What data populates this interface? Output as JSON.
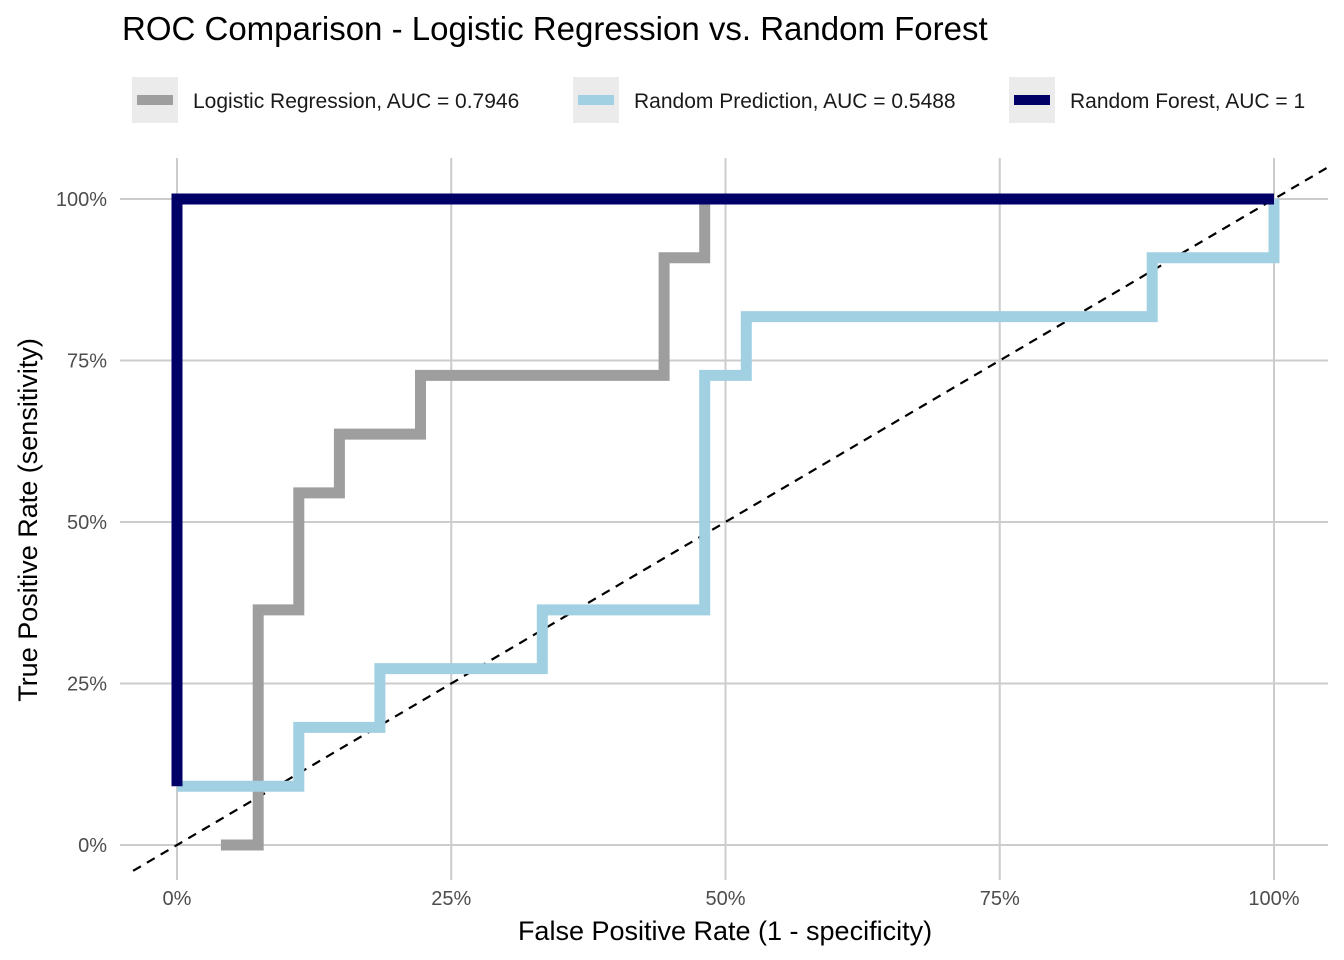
{
  "chart_data": {
    "type": "line",
    "title": "ROC Comparison - Logistic Regression vs. Random Forest",
    "xlabel": "False Positive Rate (1 - specificity)",
    "ylabel": "True Positive Rate (sensitivity)",
    "xlim": [
      0,
      1
    ],
    "ylim": [
      0,
      1
    ],
    "x_ticks": [
      0,
      0.25,
      0.5,
      0.75,
      1
    ],
    "x_tick_labels": [
      "0%",
      "25%",
      "50%",
      "75%",
      "100%"
    ],
    "y_ticks": [
      0,
      0.25,
      0.5,
      0.75,
      1
    ],
    "y_tick_labels": [
      "0%",
      "25%",
      "50%",
      "75%",
      "100%"
    ],
    "grid": true,
    "legend_position": "top",
    "reference_line": {
      "style": "dashed",
      "color": "#000000",
      "x": [
        -0.04,
        1.05
      ],
      "y": [
        -0.04,
        1.05
      ]
    },
    "series": [
      {
        "name": "Logistic Regression, AUC = 0.7946",
        "color": "#9e9e9e",
        "step": true,
        "x": [
          0.04,
          0.074,
          0.074,
          0.111,
          0.111,
          0.148,
          0.148,
          0.222,
          0.222,
          0.444,
          0.444,
          0.481,
          0.481
        ],
        "y": [
          0,
          0,
          0.364,
          0.364,
          0.545,
          0.545,
          0.636,
          0.636,
          0.727,
          0.727,
          0.909,
          0.909,
          1.0
        ]
      },
      {
        "name": "Random Prediction, AUC = 0.5488",
        "color": "#a0d0e2",
        "step": true,
        "x": [
          0,
          0.111,
          0.111,
          0.185,
          0.185,
          0.333,
          0.333,
          0.481,
          0.481,
          0.519,
          0.519,
          0.889,
          0.889,
          1.0,
          1.0
        ],
        "y": [
          0.091,
          0.091,
          0.182,
          0.182,
          0.273,
          0.273,
          0.364,
          0.364,
          0.727,
          0.727,
          0.818,
          0.818,
          0.909,
          0.909,
          1.0
        ]
      },
      {
        "name": "Random Forest, AUC = 1",
        "color": "#000066",
        "step": true,
        "x": [
          0,
          0,
          1.0
        ],
        "y": [
          0.091,
          1.0,
          1.0
        ]
      }
    ]
  }
}
